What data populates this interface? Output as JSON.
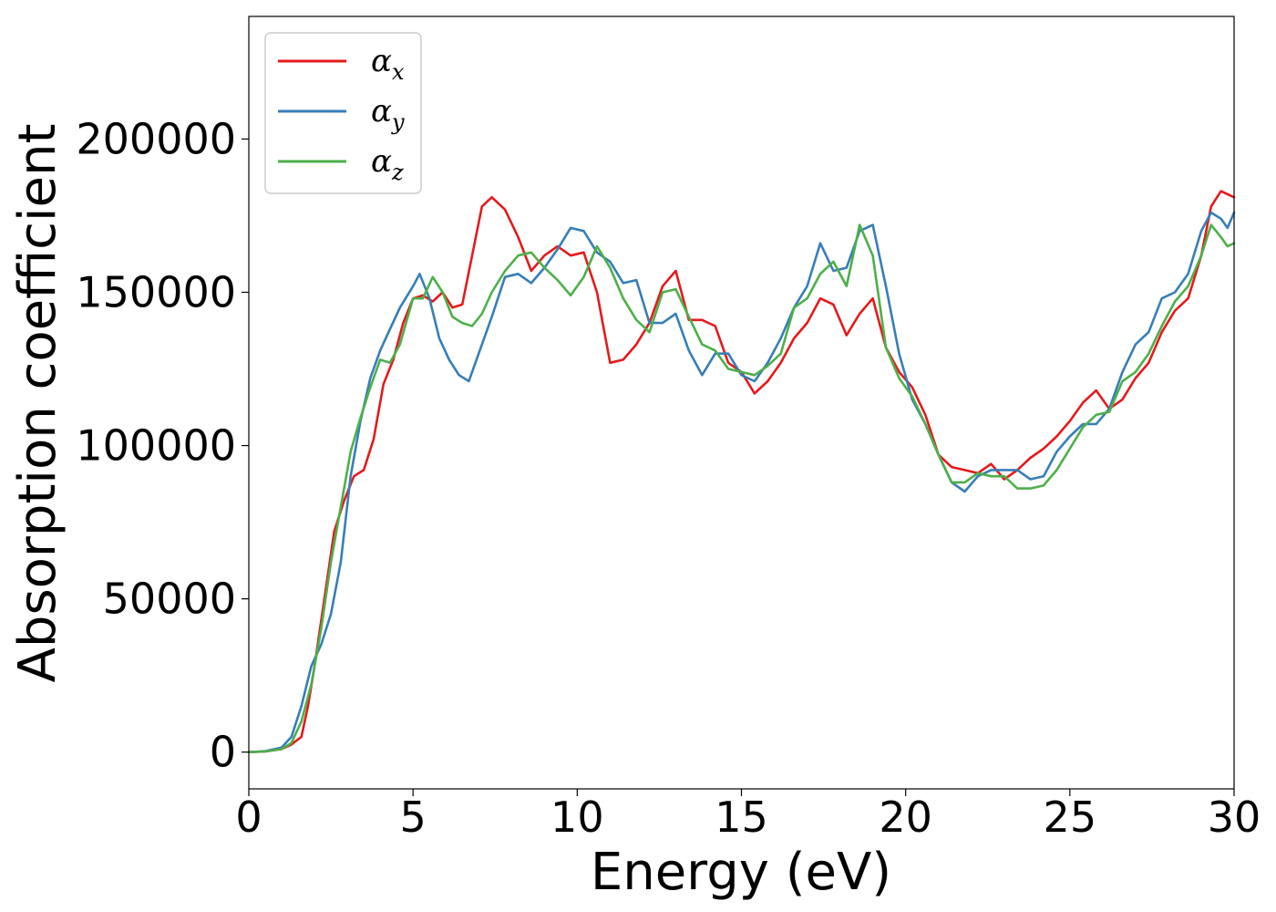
{
  "chart_data": {
    "type": "line",
    "xlabel": "Energy (eV)",
    "ylabel": "Absorption coefficient",
    "xlim": [
      0,
      30
    ],
    "ylim": [
      -12000,
      240000
    ],
    "xticks": [
      "0",
      "5",
      "10",
      "15",
      "20",
      "25",
      "30"
    ],
    "yticks": [
      "0",
      "50000",
      "100000",
      "150000",
      "200000"
    ],
    "grid": false,
    "legend_position": "top-left",
    "series": [
      {
        "name": "α",
        "subscript": "x",
        "color": "#e41a1c",
        "x": [
          0,
          0.5,
          1,
          1.3,
          1.6,
          1.8,
          2,
          2.3,
          2.6,
          2.9,
          3.2,
          3.5,
          3.8,
          4.1,
          4.4,
          4.7,
          5,
          5.3,
          5.6,
          5.9,
          6.2,
          6.5,
          6.8,
          7.1,
          7.4,
          7.8,
          8.2,
          8.6,
          9,
          9.4,
          9.8,
          10.2,
          10.6,
          11,
          11.4,
          11.8,
          12.2,
          12.6,
          13,
          13.4,
          13.8,
          14.2,
          14.6,
          15,
          15.4,
          15.8,
          16.2,
          16.6,
          17,
          17.4,
          17.8,
          18.2,
          18.6,
          19,
          19.4,
          19.8,
          20.2,
          20.6,
          21,
          21.4,
          21.8,
          22.2,
          22.6,
          23,
          23.4,
          23.8,
          24.2,
          24.6,
          25,
          25.4,
          25.8,
          26.2,
          26.6,
          27,
          27.4,
          27.8,
          28.2,
          28.6,
          29,
          29.3,
          29.6,
          30
        ],
        "y": [
          0,
          200,
          1000,
          2500,
          5000,
          15000,
          28000,
          50000,
          72000,
          82000,
          90000,
          92000,
          102000,
          120000,
          128000,
          140000,
          148000,
          149000,
          147000,
          150000,
          145000,
          146000,
          162000,
          178000,
          181000,
          177000,
          168000,
          157000,
          162000,
          165000,
          162000,
          163000,
          150000,
          127000,
          128000,
          133000,
          140000,
          152000,
          157000,
          141000,
          141000,
          139000,
          127000,
          124000,
          117000,
          121000,
          127000,
          135000,
          140000,
          148000,
          146000,
          136000,
          143000,
          148000,
          132000,
          124000,
          119000,
          110000,
          97000,
          93000,
          92000,
          91000,
          94000,
          89000,
          92000,
          96000,
          99000,
          103000,
          108000,
          114000,
          118000,
          112000,
          115000,
          122000,
          127000,
          137000,
          144000,
          148000,
          162000,
          178000,
          183000,
          181000
        ]
      },
      {
        "name": "α",
        "subscript": "y",
        "color": "#377eb8",
        "x": [
          0,
          0.5,
          1,
          1.3,
          1.6,
          1.9,
          2.2,
          2.5,
          2.8,
          3.1,
          3.4,
          3.7,
          4,
          4.3,
          4.6,
          5,
          5.2,
          5.5,
          5.8,
          6.1,
          6.4,
          6.7,
          7,
          7.4,
          7.8,
          8.2,
          8.6,
          9,
          9.4,
          9.8,
          10.2,
          10.6,
          11,
          11.4,
          11.8,
          12.2,
          12.6,
          13,
          13.4,
          13.8,
          14.2,
          14.6,
          15,
          15.4,
          15.8,
          16.2,
          16.6,
          17,
          17.4,
          17.8,
          18.2,
          18.6,
          19,
          19.4,
          19.8,
          20.2,
          20.6,
          21,
          21.4,
          21.8,
          22.2,
          22.6,
          23,
          23.4,
          23.8,
          24.2,
          24.6,
          25,
          25.4,
          25.8,
          26.2,
          26.6,
          27,
          27.4,
          27.8,
          28.2,
          28.6,
          29,
          29.3,
          29.6,
          29.8,
          30
        ],
        "y": [
          0,
          300,
          1500,
          5000,
          15000,
          28000,
          35000,
          45000,
          62000,
          90000,
          108000,
          122000,
          131000,
          138000,
          145000,
          152000,
          156000,
          148000,
          135000,
          128000,
          123000,
          121000,
          130000,
          142000,
          155000,
          156000,
          153000,
          158000,
          164000,
          171000,
          170000,
          163000,
          160000,
          153000,
          154000,
          140000,
          140000,
          143000,
          131000,
          123000,
          130000,
          130000,
          123000,
          121000,
          127000,
          135000,
          145000,
          152000,
          166000,
          157000,
          158000,
          170000,
          172000,
          152000,
          130000,
          115000,
          107000,
          97000,
          88000,
          85000,
          90000,
          92000,
          92000,
          92000,
          89000,
          90000,
          98000,
          103000,
          107000,
          107000,
          112000,
          124000,
          133000,
          137000,
          148000,
          150000,
          156000,
          170000,
          176000,
          174000,
          171000,
          176000
        ]
      },
      {
        "name": "α",
        "subscript": "z",
        "color": "#4daf4a",
        "x": [
          0,
          0.5,
          1,
          1.3,
          1.6,
          1.9,
          2.2,
          2.5,
          2.8,
          3.1,
          3.4,
          3.7,
          4,
          4.3,
          4.6,
          5,
          5.3,
          5.6,
          5.9,
          6.2,
          6.5,
          6.8,
          7.1,
          7.4,
          7.8,
          8.2,
          8.6,
          9,
          9.4,
          9.8,
          10.2,
          10.6,
          11,
          11.4,
          11.8,
          12.2,
          12.6,
          13,
          13.4,
          13.8,
          14.2,
          14.6,
          15,
          15.4,
          15.8,
          16.2,
          16.6,
          17,
          17.4,
          17.8,
          18.2,
          18.6,
          19,
          19.4,
          19.8,
          20.2,
          20.6,
          21,
          21.4,
          21.8,
          22.2,
          22.6,
          23,
          23.4,
          23.8,
          24.2,
          24.6,
          25,
          25.4,
          25.8,
          26.2,
          26.6,
          27,
          27.4,
          27.8,
          28.2,
          28.6,
          29,
          29.3,
          29.6,
          29.8,
          30
        ],
        "y": [
          0,
          200,
          1000,
          3000,
          10000,
          22000,
          40000,
          62000,
          80000,
          98000,
          109000,
          119000,
          128000,
          127000,
          133000,
          148000,
          148000,
          155000,
          150000,
          142000,
          140000,
          139000,
          143000,
          150000,
          157000,
          162000,
          163000,
          158000,
          154000,
          149000,
          155000,
          165000,
          158000,
          148000,
          141000,
          137000,
          150000,
          151000,
          142000,
          133000,
          131000,
          125000,
          124000,
          123000,
          126000,
          130000,
          145000,
          148000,
          156000,
          160000,
          152000,
          172000,
          162000,
          132000,
          122000,
          116000,
          107000,
          97000,
          88000,
          88000,
          91000,
          90000,
          90000,
          86000,
          86000,
          87000,
          92000,
          99000,
          106000,
          110000,
          111000,
          121000,
          124000,
          130000,
          139000,
          147000,
          152000,
          162000,
          172000,
          168000,
          165000,
          166000
        ]
      }
    ]
  }
}
